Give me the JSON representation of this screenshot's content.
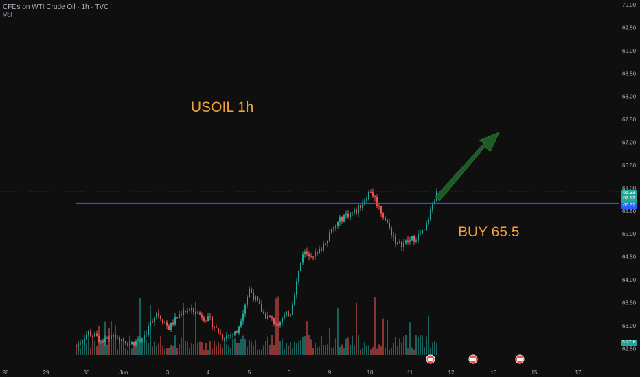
{
  "header": {
    "symbol_line": "CFDs on WTI Crude Oil · 1h · TVC",
    "volume_label": "Vol"
  },
  "annotations": {
    "title_text": "USOIL 1h",
    "buy_text": "BUY 65.5"
  },
  "colors": {
    "background": "#0f0f0f",
    "up": "#26a69a",
    "down": "#ef5350",
    "hline": "#2962ff",
    "annotation_text": "#f0a13a",
    "arrow": "#1e5a24"
  },
  "icons": [
    "event-flag-icon",
    "event-flag-icon",
    "event-flag-icon"
  ],
  "chart_data": {
    "type": "candlestick",
    "title": "CFDs on WTI Crude Oil · 1h · TVC",
    "xlabel": "",
    "ylabel": "",
    "ylim": [
      62.4,
      70.0
    ],
    "y_ticks": [
      "70.00",
      "69.50",
      "69.00",
      "68.50",
      "68.00",
      "67.50",
      "67.00",
      "66.50",
      "66.00",
      "65.50",
      "65.00",
      "64.50",
      "64.00",
      "63.50",
      "63.00",
      "62.50"
    ],
    "x_ticks": [
      "28",
      "29",
      "30",
      "Jun",
      "3",
      "4",
      "5",
      "6",
      "9",
      "10",
      "11",
      "12",
      "13",
      "15",
      "17"
    ],
    "price_points": [
      {
        "date": "May 28",
        "price": 62.55
      },
      {
        "date": "May 29",
        "price": 62.85
      },
      {
        "date": "May 29",
        "price": 62.65
      },
      {
        "date": "May 30",
        "price": 62.8
      },
      {
        "date": "May 30",
        "price": 62.6
      },
      {
        "date": "Jun 2",
        "price": 62.7
      },
      {
        "date": "Jun 2",
        "price": 63.3
      },
      {
        "date": "Jun 3",
        "price": 62.95
      },
      {
        "date": "Jun 3",
        "price": 63.35
      },
      {
        "date": "Jun 4",
        "price": 63.3
      },
      {
        "date": "Jun 4",
        "price": 63.1
      },
      {
        "date": "Jun 5",
        "price": 62.75
      },
      {
        "date": "Jun 5",
        "price": 62.85
      },
      {
        "date": "Jun 5",
        "price": 63.8
      },
      {
        "date": "Jun 6",
        "price": 63.25
      },
      {
        "date": "Jun 6",
        "price": 63.05
      },
      {
        "date": "Jun 6",
        "price": 63.3
      },
      {
        "date": "Jun 6",
        "price": 64.6
      },
      {
        "date": "Jun 9",
        "price": 64.55
      },
      {
        "date": "Jun 9",
        "price": 65.0
      },
      {
        "date": "Jun 9",
        "price": 65.4
      },
      {
        "date": "Jun 10",
        "price": 65.5
      },
      {
        "date": "Jun 10",
        "price": 65.95
      },
      {
        "date": "Jun 10",
        "price": 65.4
      },
      {
        "date": "Jun 10",
        "price": 64.75
      },
      {
        "date": "Jun 11",
        "price": 64.85
      },
      {
        "date": "Jun 11",
        "price": 65.05
      },
      {
        "date": "Jun 11",
        "price": 65.93
      }
    ],
    "current_price": "65.93",
    "countdown": "02:12",
    "horizontal_line": "65.67",
    "volume_label": "3.27 K",
    "annotations": [
      "USOIL 1h",
      "BUY 65.5"
    ],
    "grid": false,
    "legend": "none"
  }
}
